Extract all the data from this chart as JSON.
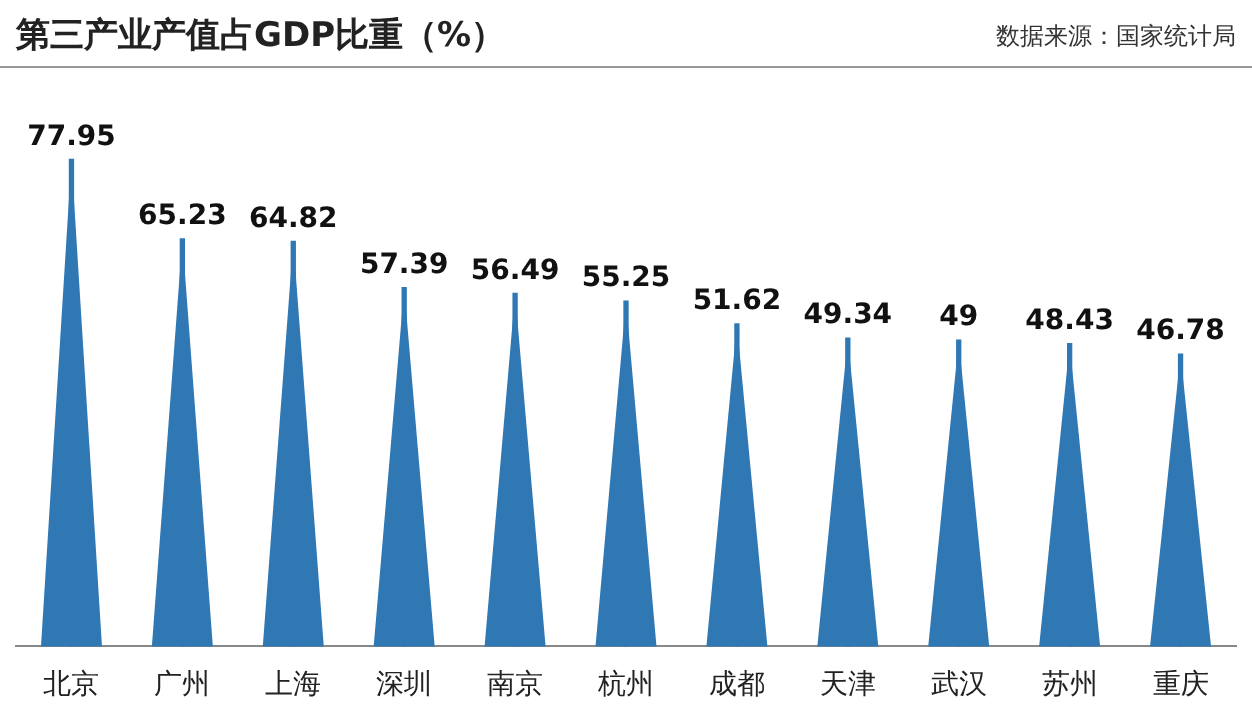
{
  "chart_data": {
    "type": "bar",
    "title": "第三产业产值占GDP比重（%）",
    "annotations": [
      "数据来源：国家统计局"
    ],
    "categories": [
      "北京",
      "广州",
      "上海",
      "深圳",
      "南京",
      "杭州",
      "成都",
      "天津",
      "武汉",
      "苏州",
      "重庆"
    ],
    "values": [
      77.95,
      65.23,
      64.82,
      57.39,
      56.49,
      55.25,
      51.62,
      49.34,
      49,
      48.43,
      46.78
    ],
    "color": "#2f78b4",
    "data_labels": true,
    "grid": false,
    "legend": false
  }
}
